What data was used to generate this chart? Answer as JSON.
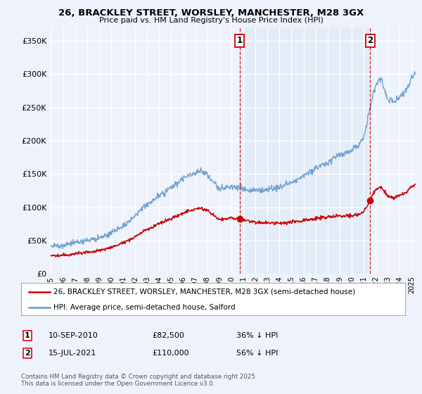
{
  "title": "26, BRACKLEY STREET, WORSLEY, MANCHESTER, M28 3GX",
  "subtitle": "Price paid vs. HM Land Registry's House Price Index (HPI)",
  "ylabel_ticks": [
    "£0",
    "£50K",
    "£100K",
    "£150K",
    "£200K",
    "£250K",
    "£300K",
    "£350K"
  ],
  "ytick_vals": [
    0,
    50000,
    100000,
    150000,
    200000,
    250000,
    300000,
    350000
  ],
  "ylim": [
    0,
    370000
  ],
  "xlim_start": 1994.8,
  "xlim_end": 2025.5,
  "legend_line1": "26, BRACKLEY STREET, WORSLEY, MANCHESTER, M28 3GX (semi-detached house)",
  "legend_line2": "HPI: Average price, semi-detached house, Salford",
  "point1_label": "1",
  "point1_date": "10-SEP-2010",
  "point1_price": "£82,500",
  "point1_hpi": "36% ↓ HPI",
  "point1_x": 2010.69,
  "point1_y": 82500,
  "point2_label": "2",
  "point2_date": "15-JUL-2021",
  "point2_price": "£110,000",
  "point2_hpi": "56% ↓ HPI",
  "point2_x": 2021.54,
  "point2_y": 110000,
  "red_color": "#cc0000",
  "blue_color": "#6699cc",
  "blue_fill": "#dce8f5",
  "background_color": "#eef2fb",
  "footer": "Contains HM Land Registry data © Crown copyright and database right 2025.\nThis data is licensed under the Open Government Licence v3.0."
}
